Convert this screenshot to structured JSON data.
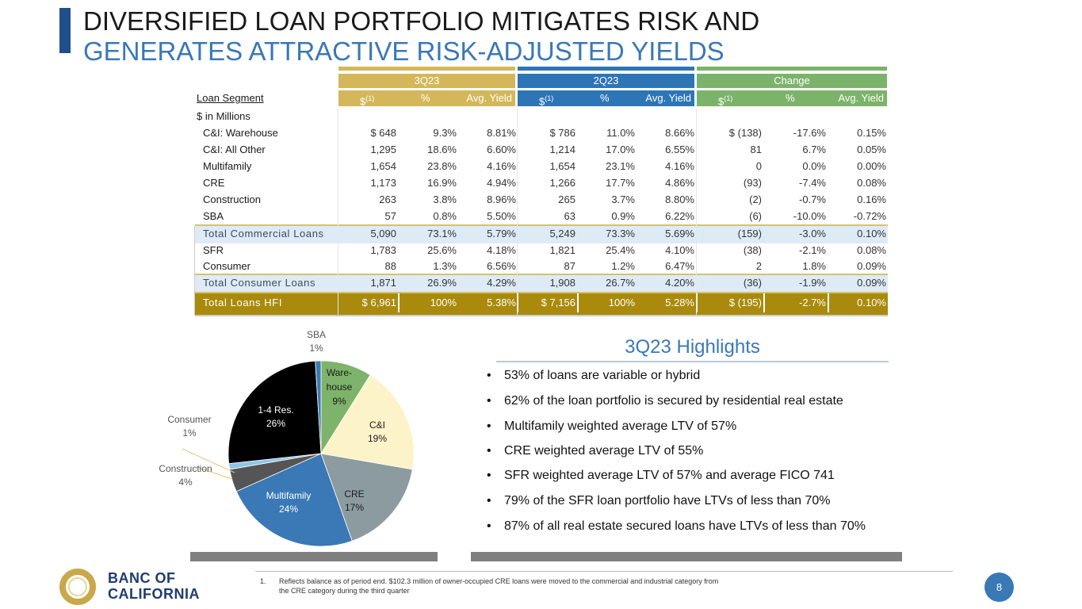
{
  "title": {
    "line1": "DIVERSIFIED LOAN PORTFOLIO MITIGATES RISK AND",
    "line2": "GENERATES ATTRACTIVE RISK-ADJUSTED YIELDS"
  },
  "table": {
    "periods": [
      "3Q23",
      "2Q23",
      "Change"
    ],
    "segment_header": "Loan Segment",
    "subheaders": [
      "$(1)",
      "%",
      "Avg. Yield"
    ],
    "dollar_label": "$",
    "footnote_ref": "(1)",
    "units_label": "$ in Millions",
    "rows": [
      {
        "label": "C&I: Warehouse",
        "v": [
          "$  648",
          "9.3%",
          "8.81%",
          "$  786",
          "11.0%",
          "8.66%",
          "$  (138)",
          "-17.6%",
          "0.15%"
        ]
      },
      {
        "label": "C&I: All Other",
        "v": [
          "1,295",
          "18.6%",
          "6.60%",
          "1,214",
          "17.0%",
          "6.55%",
          "81",
          "6.7%",
          "0.05%"
        ]
      },
      {
        "label": "Multifamily",
        "v": [
          "1,654",
          "23.8%",
          "4.16%",
          "1,654",
          "23.1%",
          "4.16%",
          "0",
          "0.0%",
          "0.00%"
        ]
      },
      {
        "label": "CRE",
        "v": [
          "1,173",
          "16.9%",
          "4.94%",
          "1,266",
          "17.7%",
          "4.86%",
          "(93)",
          "-7.4%",
          "0.08%"
        ]
      },
      {
        "label": "Construction",
        "v": [
          "263",
          "3.8%",
          "8.96%",
          "265",
          "3.7%",
          "8.80%",
          "(2)",
          "-0.7%",
          "0.16%"
        ]
      },
      {
        "label": "SBA",
        "v": [
          "57",
          "0.8%",
          "5.50%",
          "63",
          "0.9%",
          "6.22%",
          "(6)",
          "-10.0%",
          "-0.72%"
        ]
      },
      {
        "label": "Total Commercial Loans",
        "v": [
          "5,090",
          "73.1%",
          "5.79%",
          "5,249",
          "73.3%",
          "5.69%",
          "(159)",
          "-3.0%",
          "0.10%"
        ]
      },
      {
        "label": "SFR",
        "v": [
          "1,783",
          "25.6%",
          "4.18%",
          "1,821",
          "25.4%",
          "4.10%",
          "(38)",
          "-2.1%",
          "0.08%"
        ]
      },
      {
        "label": "Consumer",
        "v": [
          "88",
          "1.3%",
          "6.56%",
          "87",
          "1.2%",
          "6.47%",
          "2",
          "1.8%",
          "0.09%"
        ]
      },
      {
        "label": "Total Consumer Loans",
        "v": [
          "1,871",
          "26.9%",
          "4.29%",
          "1,908",
          "26.7%",
          "4.20%",
          "(36)",
          "-1.9%",
          "0.09%"
        ]
      },
      {
        "label": "Total Loans HFI",
        "v": [
          "$  6,961",
          "100%",
          "5.38%",
          "$  7,156",
          "100%",
          "5.28%",
          "$  (195)",
          "-2.7%",
          "0.10%"
        ]
      }
    ]
  },
  "chart_data": {
    "type": "pie",
    "slices": [
      {
        "name": "Ware-house",
        "label_lines": [
          "Ware-",
          "house",
          "9%"
        ],
        "value": 9,
        "color": "#7db36a"
      },
      {
        "name": "C&I",
        "label_lines": [
          "C&I",
          "19%"
        ],
        "value": 19,
        "color": "#fdf3c9"
      },
      {
        "name": "CRE",
        "label_lines": [
          "CRE",
          "17%"
        ],
        "value": 17,
        "color": "#8c9ba0"
      },
      {
        "name": "Multifamily",
        "label_lines": [
          "Multifamily",
          "24%"
        ],
        "value": 24,
        "color": "#3a78b6"
      },
      {
        "name": "Construction",
        "label_lines": [
          "Construction",
          "4%"
        ],
        "value": 4,
        "color": "#555555"
      },
      {
        "name": "Consumer",
        "label_lines": [
          "Consumer",
          "1%"
        ],
        "value": 1,
        "color": "#8ec6ea"
      },
      {
        "name": "1-4 Res.",
        "label_lines": [
          "1-4 Res.",
          "26%"
        ],
        "value": 26,
        "color": "#000000"
      },
      {
        "name": "SBA",
        "label_lines": [
          "SBA",
          "1%"
        ],
        "value": 1,
        "color": "#3a78b6"
      }
    ]
  },
  "highlights": {
    "title": "3Q23 Highlights",
    "bullet_char": "•",
    "items": [
      "53% of loans are variable or hybrid",
      "62% of the loan portfolio is secured by residential real estate",
      "Multifamily weighted average LTV of 57%",
      "CRE weighted average LTV of 55%",
      "SFR weighted average LTV of 57% and average FICO 741",
      "79% of the SFR loan portfolio have LTVs of less than 70%",
      "87% of all real estate secured loans have LTVs of less than 70%"
    ]
  },
  "footer": {
    "footnote_number": "1.",
    "footnote_line1": "Reflects balance as of period end. $102.3 million of owner-occupied CRE loans were moved to the commercial and industrial category from",
    "footnote_line2": "the CRE category during the third quarter",
    "page_number": "8",
    "logo_line1": "BANC OF",
    "logo_line2": "CALIFORNIA"
  },
  "colors": {
    "gold": "#d4b75a",
    "gold_dark": "#a98a0c",
    "blue": "#2e75b6",
    "green": "#7cb36a",
    "subtotal_bg": "#deebf7"
  }
}
